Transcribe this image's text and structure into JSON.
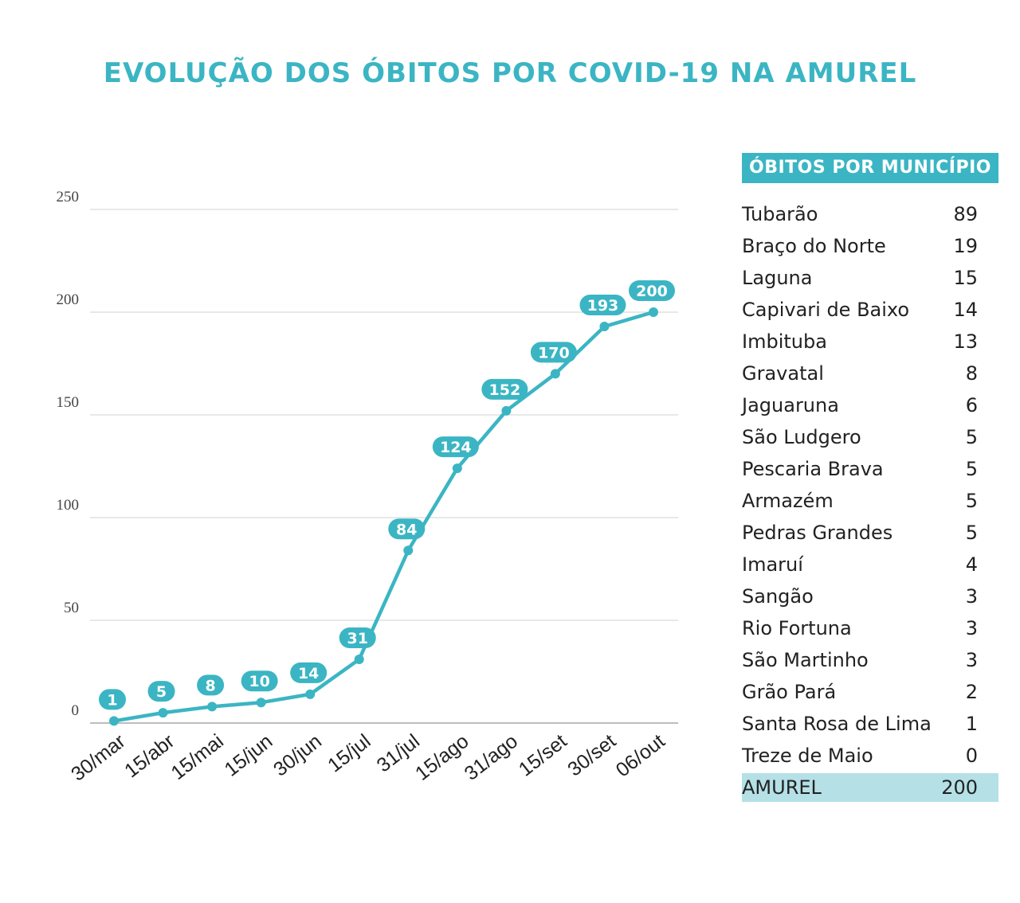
{
  "title": "EVOLUÇÃO DOS ÓBITOS POR COVID-19 NA AMUREL",
  "colors": {
    "accent": "#3bb5c3",
    "title": "#3bb5c3",
    "line": "#3bb5c3",
    "gridline": "#d9d9d9",
    "axis_text": "#444444",
    "total_row_bg": "#b4e0e6"
  },
  "chart_data": {
    "type": "line",
    "title": "",
    "xlabel": "",
    "ylabel": "",
    "ylim": [
      0,
      250
    ],
    "yticks": [
      0,
      50,
      100,
      150,
      200,
      250
    ],
    "grid": true,
    "categories": [
      "30/mar",
      "15/abr",
      "15/mai",
      "15/jun",
      "30/jun",
      "15/jul",
      "31/jul",
      "15/ago",
      "31/ago",
      "15/set",
      "30/set",
      "06/out"
    ],
    "values": [
      1,
      5,
      8,
      10,
      14,
      31,
      84,
      124,
      152,
      170,
      193,
      200
    ],
    "data_labels": [
      "1",
      "5",
      "8",
      "10",
      "14",
      "31",
      "84",
      "124",
      "152",
      "170",
      "193",
      "200"
    ]
  },
  "table": {
    "header": "ÓBITOS POR MUNICÍPIO",
    "rows": [
      {
        "name": "Tubarão",
        "value": "89"
      },
      {
        "name": "Braço do Norte",
        "value": "19"
      },
      {
        "name": "Laguna",
        "value": "15"
      },
      {
        "name": "Capivari de Baixo",
        "value": "14"
      },
      {
        "name": "Imbituba",
        "value": "13"
      },
      {
        "name": "Gravatal",
        "value": "8"
      },
      {
        "name": "Jaguaruna",
        "value": "6"
      },
      {
        "name": "São Ludgero",
        "value": "5"
      },
      {
        "name": "Pescaria Brava",
        "value": "5"
      },
      {
        "name": "Armazém",
        "value": "5"
      },
      {
        "name": "Pedras Grandes",
        "value": "5"
      },
      {
        "name": "Imaruí",
        "value": "4"
      },
      {
        "name": "Sangão",
        "value": "3"
      },
      {
        "name": "Rio Fortuna",
        "value": "3"
      },
      {
        "name": "São Martinho",
        "value": "3"
      },
      {
        "name": "Grão Pará",
        "value": "2"
      },
      {
        "name": "Santa Rosa de Lima",
        "value": "1"
      },
      {
        "name": "Treze de Maio",
        "value": "0"
      }
    ],
    "total": {
      "name": "AMUREL",
      "value": "200"
    }
  }
}
